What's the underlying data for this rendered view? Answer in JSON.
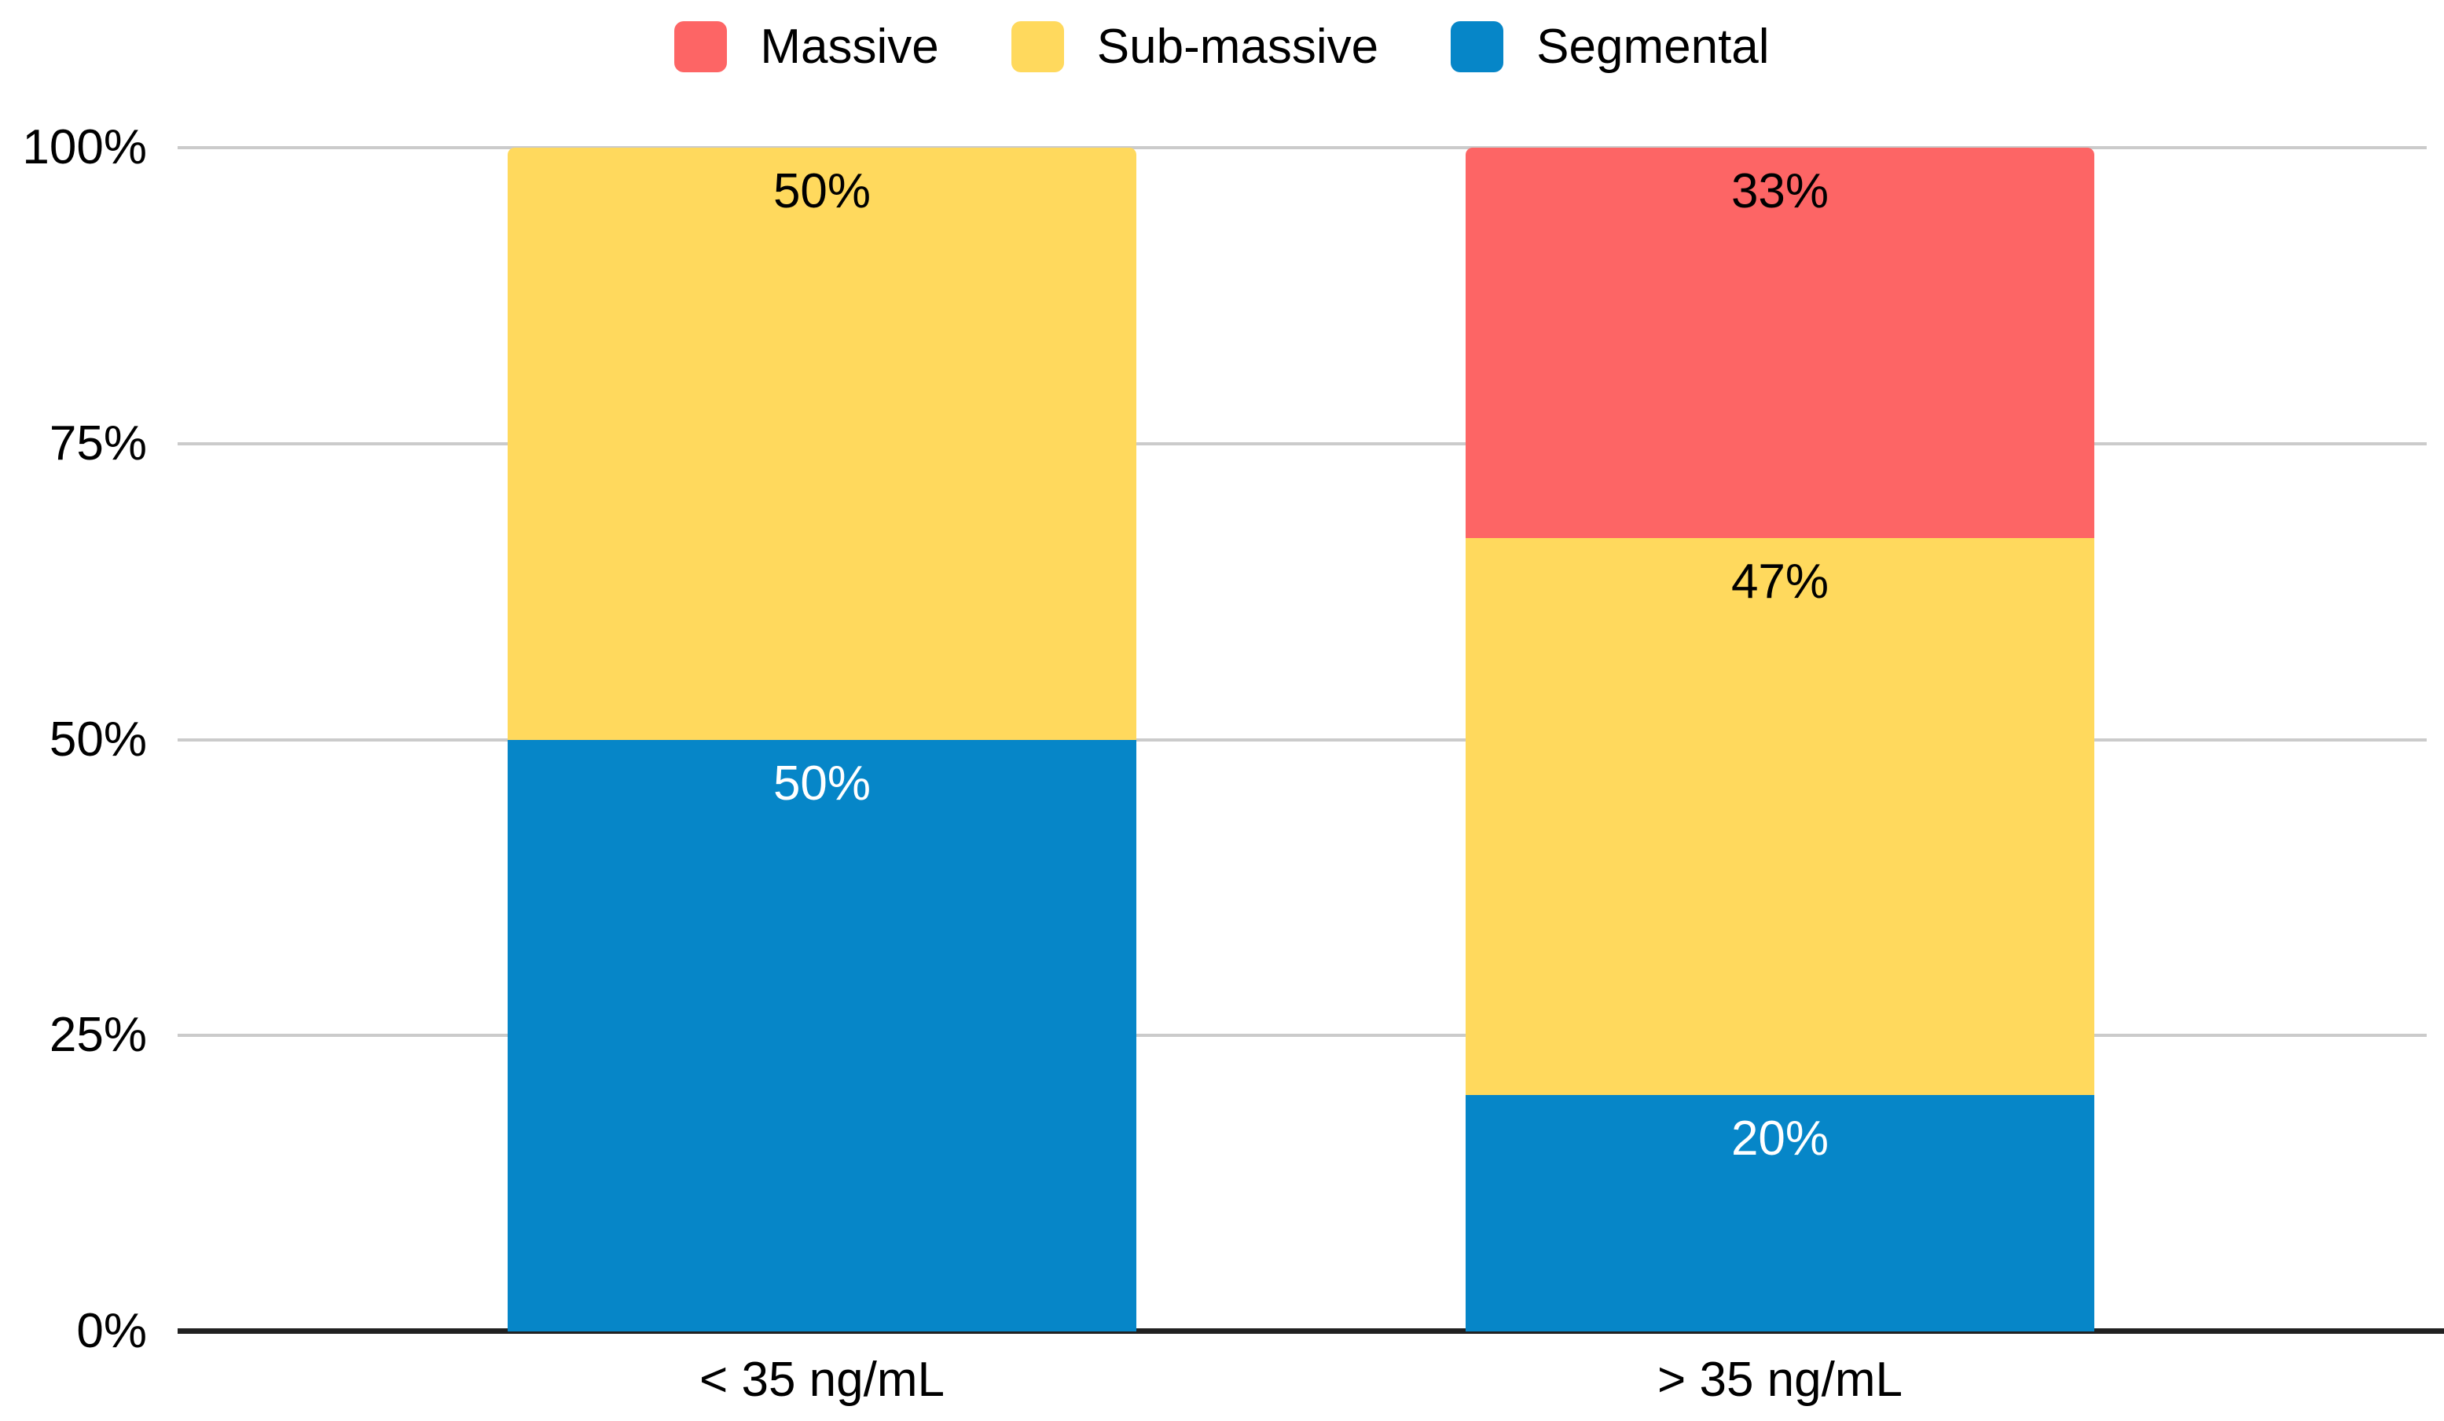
{
  "chart_data": {
    "type": "bar",
    "subtype": "stacked-100-percent",
    "title": "",
    "categories": [
      "< 35 ng/mL",
      "> 35 ng/mL"
    ],
    "series": [
      {
        "name": "Massive",
        "color": "#FD6565",
        "values": [
          0,
          33
        ],
        "data_labels": [
          "",
          "33%"
        ],
        "label_text_color": "#000000"
      },
      {
        "name": "Sub-massive",
        "color": "#FFD95D",
        "values": [
          50,
          47
        ],
        "data_labels": [
          "50%",
          "47%"
        ],
        "label_text_color": "#000000"
      },
      {
        "name": "Segmental",
        "color": "#0686C8",
        "values": [
          50,
          20
        ],
        "data_labels": [
          "50%",
          "20%"
        ],
        "label_text_color": "#FFFFFF"
      }
    ],
    "stack_order_bottom_to_top": [
      "Segmental",
      "Sub-massive",
      "Massive"
    ],
    "y_axis": {
      "ticks": [
        {
          "label": "0%",
          "value": 0
        },
        {
          "label": "25%",
          "value": 25
        },
        {
          "label": "50%",
          "value": 50
        },
        {
          "label": "75%",
          "value": 75
        },
        {
          "label": "100%",
          "value": 100
        }
      ],
      "range": [
        0,
        100
      ]
    },
    "grid": true,
    "legend_position": "top"
  },
  "colors": {
    "gridline": "#CBCBCB",
    "axis_line": "#212121",
    "text": "#000000",
    "background": "#FFFFFF"
  }
}
